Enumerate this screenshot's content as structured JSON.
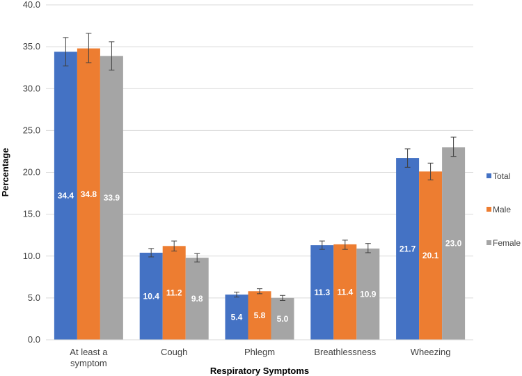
{
  "chart_data": {
    "type": "bar",
    "title": "",
    "xlabel": "Respiratory Symptoms",
    "ylabel": "Percentage",
    "ylim": [
      0,
      40
    ],
    "yticks": [
      "0.0",
      "5.0",
      "10.0",
      "15.0",
      "20.0",
      "25.0",
      "30.0",
      "35.0",
      "40.0"
    ],
    "grid": true,
    "legend_position": "right",
    "categories": [
      [
        "At least a",
        "symptom"
      ],
      [
        "Cough"
      ],
      [
        "Phlegm"
      ],
      [
        "Breathlessness"
      ],
      [
        "Wheezing"
      ]
    ],
    "series": [
      {
        "name": "Total",
        "color": "#4472c4",
        "values": [
          34.4,
          10.4,
          5.4,
          11.3,
          21.7
        ],
        "labels": [
          "34.4",
          "10.4",
          "5.4",
          "11.3",
          "21.7"
        ],
        "error_low": [
          32.7,
          9.9,
          5.1,
          10.8,
          20.6
        ],
        "error_high": [
          36.1,
          10.9,
          5.7,
          11.8,
          22.8
        ]
      },
      {
        "name": "Male",
        "color": "#ed7d31",
        "values": [
          34.8,
          11.2,
          5.8,
          11.4,
          20.1
        ],
        "labels": [
          "34.8",
          "11.2",
          "5.8",
          "11.4",
          "20.1"
        ],
        "error_low": [
          33.1,
          10.6,
          5.5,
          10.8,
          19.1
        ],
        "error_high": [
          36.6,
          11.8,
          6.1,
          11.9,
          21.1
        ]
      },
      {
        "name": "Female",
        "color": "#a5a5a5",
        "values": [
          33.9,
          9.8,
          5.0,
          10.9,
          23.0
        ],
        "labels": [
          "33.9",
          "9.8",
          "5.0",
          "10.9",
          "23.0"
        ],
        "error_low": [
          32.2,
          9.3,
          4.7,
          10.4,
          21.9
        ],
        "error_high": [
          35.6,
          10.3,
          5.3,
          11.5,
          24.2
        ]
      }
    ]
  }
}
